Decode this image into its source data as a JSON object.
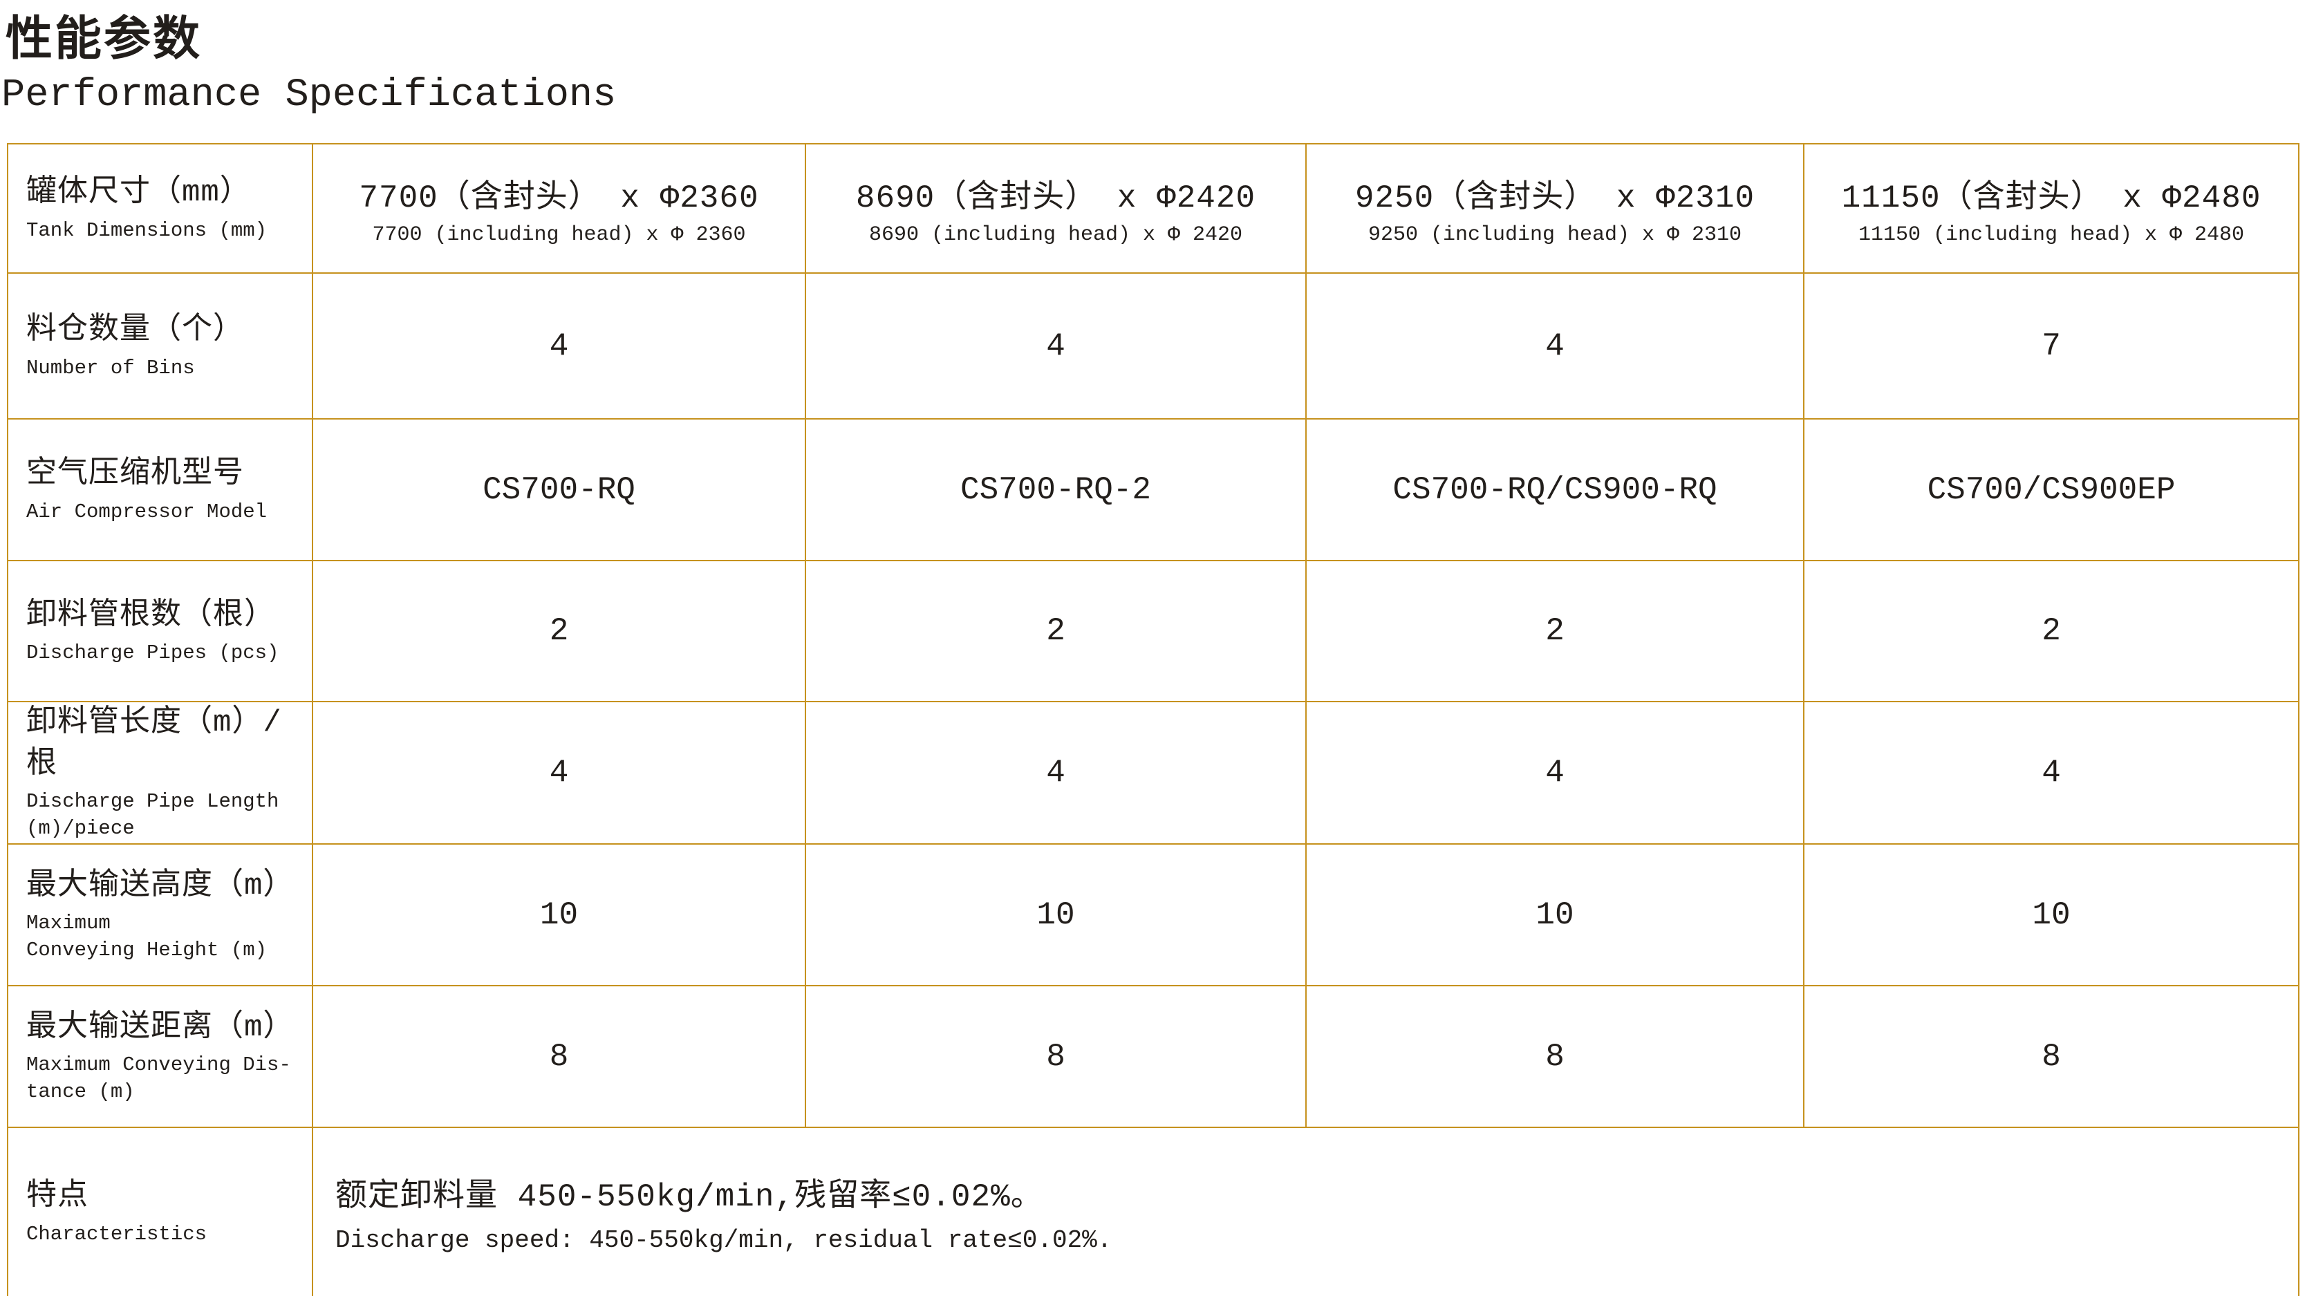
{
  "page": {
    "title_zh": "性能参数",
    "title_en": "Performance Specifications"
  },
  "colors": {
    "border_gold": "#C6921E",
    "text_ink": "#221E1B"
  },
  "table": {
    "rows": [
      {
        "label_zh": "罐体尺寸（mm）",
        "label_en": "Tank Dimensions (mm)",
        "dual": true,
        "cells": [
          {
            "main": "7700（含封头） x Φ2360",
            "sub": "7700 (including head) x Φ 2360"
          },
          {
            "main": "8690（含封头） x Φ2420",
            "sub": "8690 (including head) x Φ 2420"
          },
          {
            "main": "9250（含封头） x Φ2310",
            "sub": "9250 (including head) x Φ 2310"
          },
          {
            "main": "11150（含封头） x Φ2480",
            "sub": "11150 (including head) x Φ 2480"
          }
        ]
      },
      {
        "label_zh": "料仓数量（个）",
        "label_en": "Number of Bins",
        "cells": [
          "4",
          "4",
          "4",
          "7"
        ]
      },
      {
        "label_zh": "空气压缩机型号",
        "label_en": "Air Compressor Model",
        "cells": [
          "CS700-RQ",
          "CS700-RQ-2",
          "CS700-RQ/CS900-RQ",
          "CS700/CS900EP"
        ]
      },
      {
        "label_zh": "卸料管根数（根）",
        "label_en": "Discharge Pipes (pcs)",
        "cells": [
          "2",
          "2",
          "2",
          "2"
        ]
      },
      {
        "label_zh": "卸料管长度（m）/根",
        "label_en": "Discharge Pipe Length\n(m)/piece",
        "cells": [
          "4",
          "4",
          "4",
          "4"
        ]
      },
      {
        "label_zh": "最大输送高度（m）",
        "label_en": "Maximum\nConveying Height (m)",
        "cells": [
          "10",
          "10",
          "10",
          "10"
        ]
      },
      {
        "label_zh": "最大输送距离（m）",
        "label_en": "Maximum Conveying Dis-\ntance (m)",
        "cells": [
          "8",
          "8",
          "8",
          "8"
        ]
      },
      {
        "label_zh": "特点",
        "label_en": "Characteristics",
        "merged": {
          "line1": "额定卸料量 450-550kg/min,残留率≤0.02%。",
          "line2": "Discharge speed: 450-550kg/min, residual rate≤0.02%."
        }
      }
    ]
  }
}
